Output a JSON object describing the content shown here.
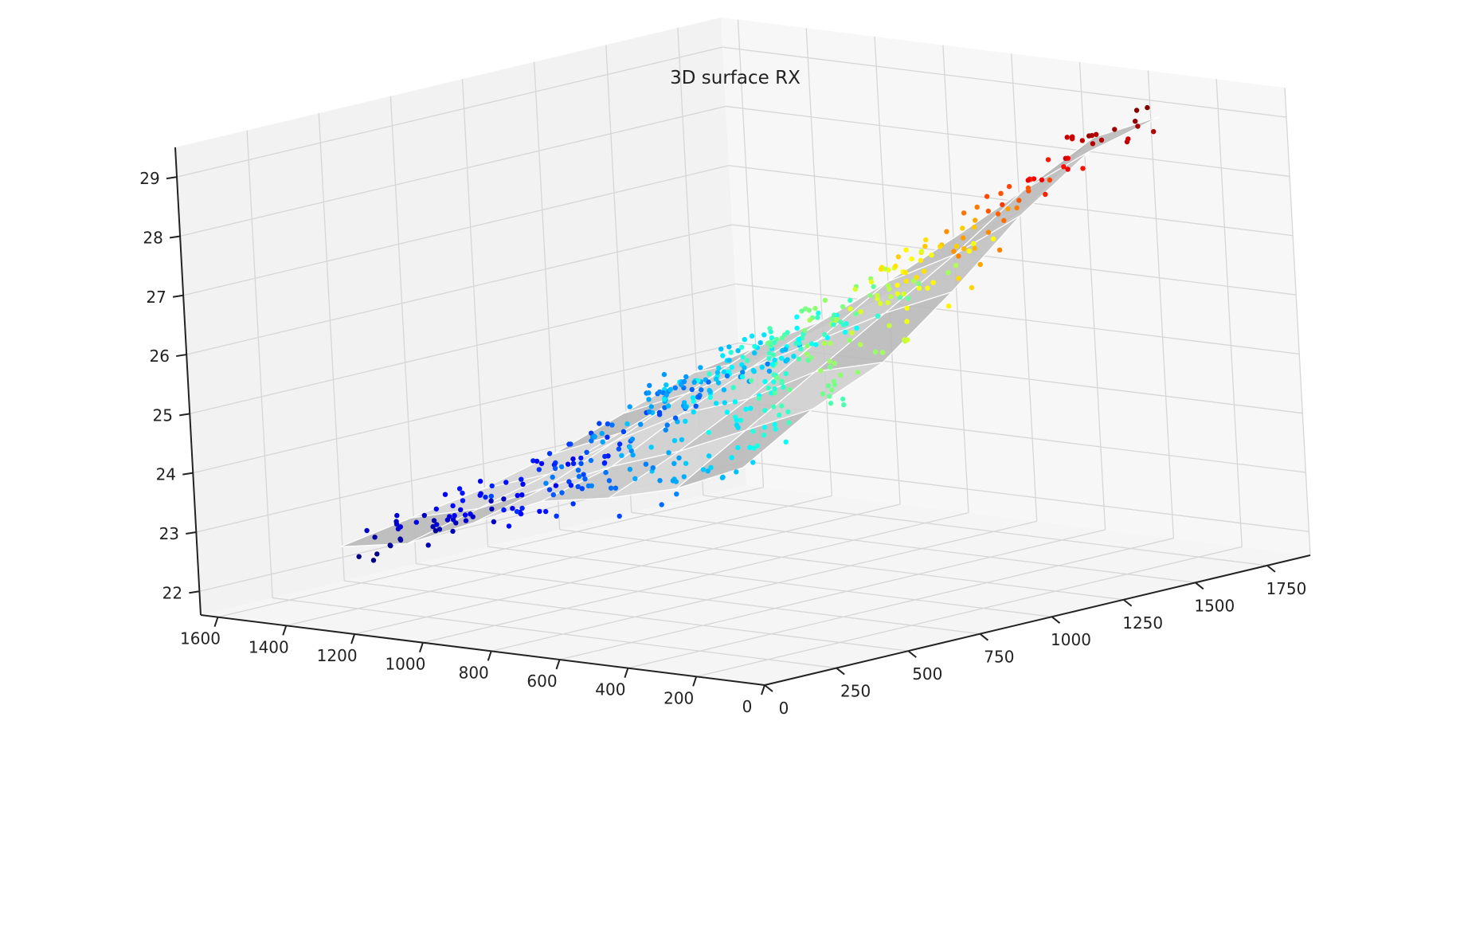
{
  "chart_data": {
    "type": "surface3d",
    "title": "3D surface RX",
    "x_axis": {
      "label": "",
      "range": [
        0,
        1650
      ],
      "ticks": [
        "0",
        "200",
        "400",
        "600",
        "800",
        "1000",
        "1200",
        "1400",
        "1600"
      ]
    },
    "y_axis": {
      "label": "",
      "range": [
        0,
        1900
      ],
      "ticks": [
        "0",
        "250",
        "500",
        "750",
        "1000",
        "1250",
        "1500",
        "1750"
      ]
    },
    "z_axis": {
      "label": "",
      "range": [
        21.6,
        29.5
      ],
      "ticks": [
        "22",
        "23",
        "24",
        "25",
        "26",
        "27",
        "28",
        "29"
      ]
    },
    "grid": true,
    "surface": {
      "face_color": "#c8c8c8",
      "edge_color": "#ffffff",
      "x": [
        200,
        400,
        600,
        800,
        1000,
        1200,
        1400
      ],
      "y": [
        200,
        450,
        700,
        950,
        1200,
        1450,
        1700
      ],
      "z": [
        [
          24.9,
          25.6,
          26.1,
          27.0,
          28.0,
          28.8,
          29.1
        ],
        [
          24.4,
          25.1,
          25.8,
          26.5,
          27.2,
          28.0,
          28.6
        ],
        [
          24.1,
          24.6,
          25.2,
          25.9,
          26.6,
          27.1,
          27.3
        ],
        [
          23.9,
          24.2,
          24.8,
          25.3,
          25.8,
          26.2,
          26.4
        ],
        [
          23.4,
          23.7,
          24.2,
          24.7,
          25.2,
          25.4,
          25.6
        ],
        [
          22.9,
          23.2,
          23.5,
          23.9,
          24.3,
          24.6,
          24.9
        ],
        [
          22.7,
          22.9,
          23.1,
          23.4,
          23.8,
          24.2,
          24.4
        ]
      ]
    },
    "scatter": {
      "colormap": "jet",
      "marker": "circle",
      "description_of_coloring": "points colored by z value"
    }
  }
}
